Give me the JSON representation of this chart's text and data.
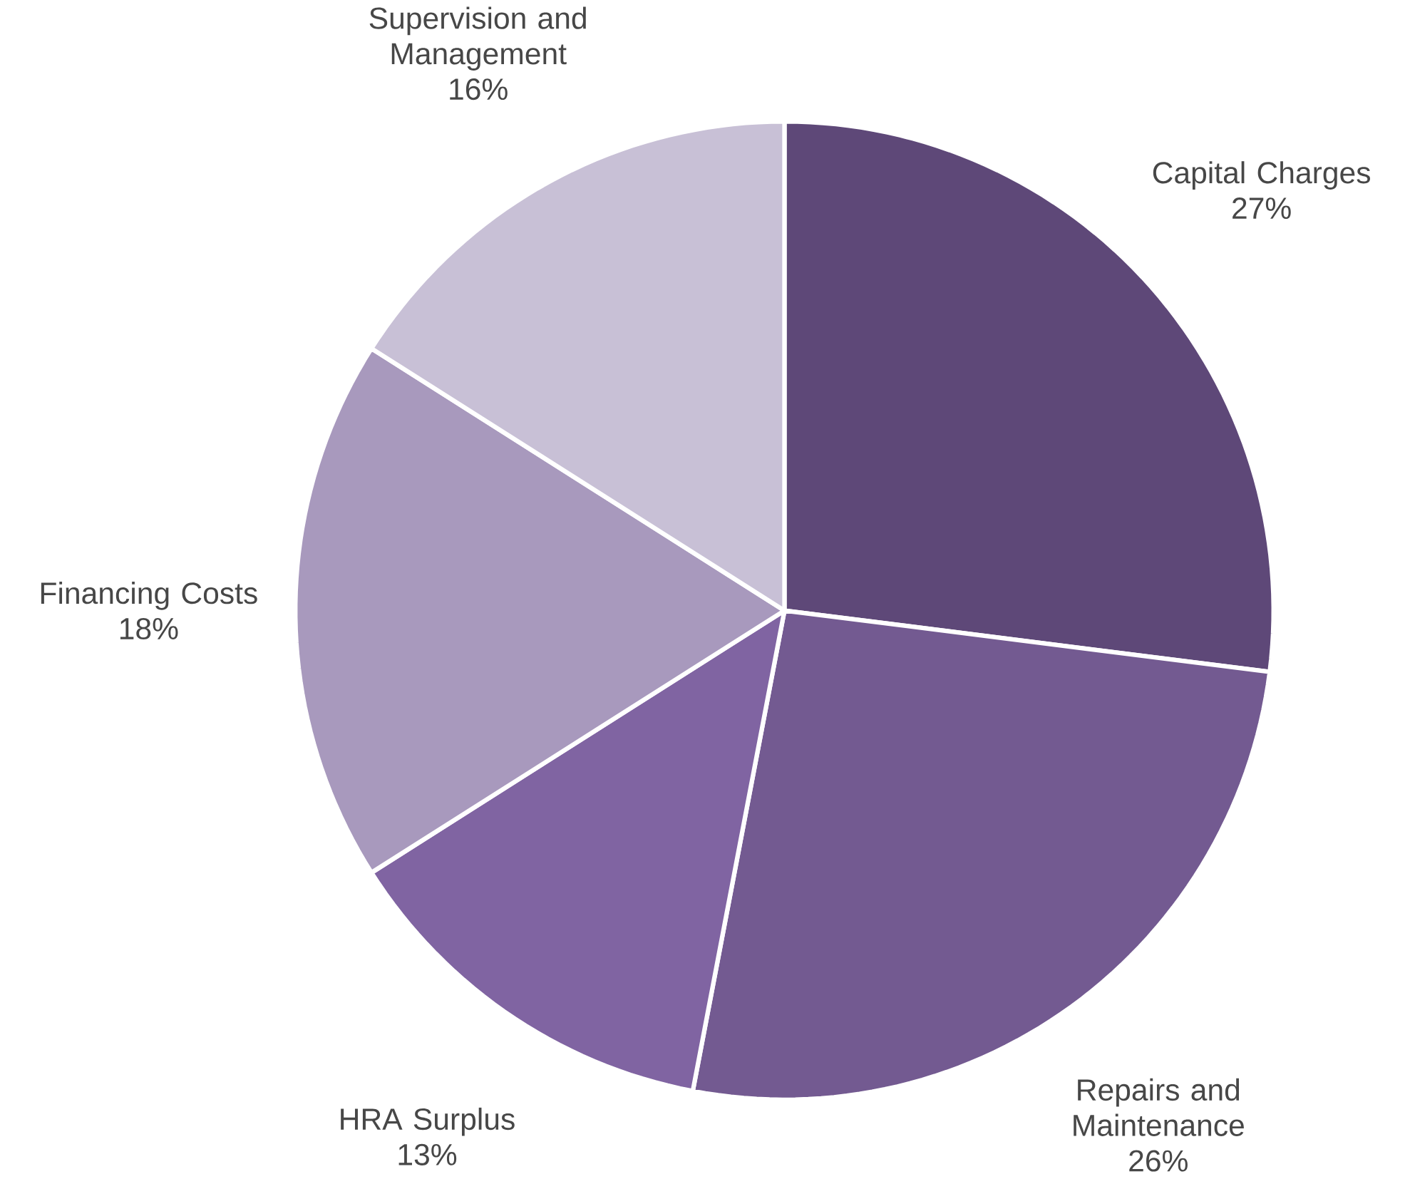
{
  "chart_data": {
    "type": "pie",
    "categories": [
      "Capital Charges",
      "Repairs and Maintenance",
      "HRA Surplus",
      "Financing Costs",
      "Supervision and Management"
    ],
    "values": [
      27,
      26,
      13,
      18,
      16
    ],
    "value_labels": [
      "27%",
      "26%",
      "13%",
      "18%",
      "16%"
    ],
    "colors": [
      "#5e4878",
      "#735a91",
      "#8064a2",
      "#a899bd",
      "#c8c0d6"
    ]
  }
}
